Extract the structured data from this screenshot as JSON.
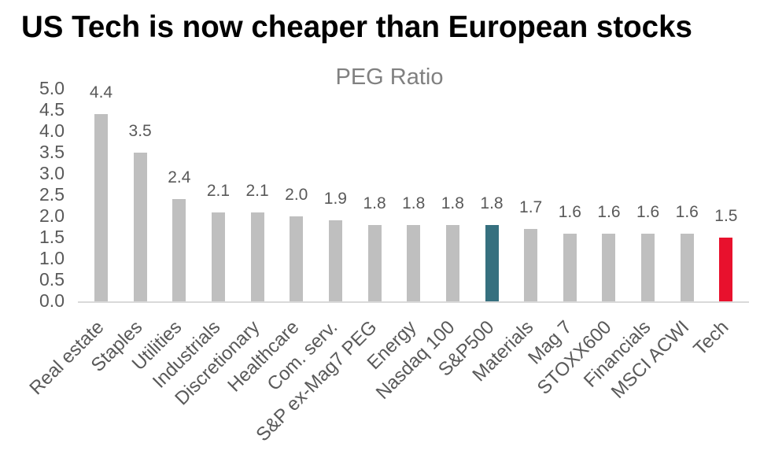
{
  "title": "US Tech is now cheaper than European stocks",
  "chart_data": {
    "type": "bar",
    "title": "PEG Ratio",
    "categories": [
      "Real estate",
      "Staples",
      "Utilities",
      "Industrials",
      "Discretionary",
      "Healthcare",
      "Com. serv.",
      "S&P ex-Mag7 PEG",
      "Energy",
      "Nasdaq 100",
      "S&P500",
      "Materials",
      "Mag 7",
      "STOXX600",
      "Financials",
      "MSCI ACWI",
      "Tech"
    ],
    "values": [
      4.4,
      3.5,
      2.4,
      2.1,
      2.1,
      2.0,
      1.9,
      1.8,
      1.8,
      1.8,
      1.8,
      1.7,
      1.6,
      1.6,
      1.6,
      1.6,
      1.5
    ],
    "value_labels": [
      "4.4",
      "3.5",
      "2.4",
      "2.1",
      "2.1",
      "2.0",
      "1.9",
      "1.8",
      "1.8",
      "1.8",
      "1.8",
      "1.7",
      "1.6",
      "1.6",
      "1.6",
      "1.6",
      "1.5"
    ],
    "yticks": [
      "5.0",
      "4.5",
      "4.0",
      "3.5",
      "3.0",
      "2.5",
      "2.0",
      "1.5",
      "1.0",
      "0.5",
      "0.0"
    ],
    "ylim": [
      0,
      5
    ],
    "grid": false,
    "legend": null,
    "bar_color_default": "#bfbfbf",
    "highlight": {
      "S&P500": "#36707f",
      "Tech": "#e8112d"
    },
    "label_color": "#595959",
    "axis_line_color": "#d9d9d9"
  }
}
